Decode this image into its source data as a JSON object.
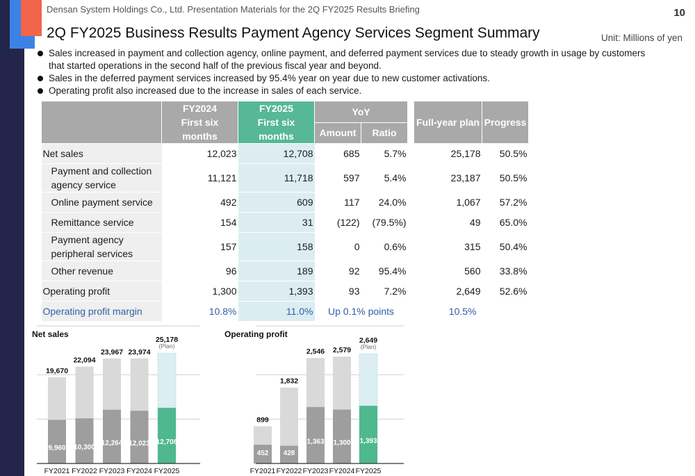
{
  "header": {
    "company": "Densan System Holdings Co., Ltd. Presentation Materials for the 2Q FY2025 Results Briefing",
    "page_number": "10",
    "title": "2Q FY2025 Business Results Payment Agency Services Segment Summary",
    "unit": "Unit: Millions of yen"
  },
  "bullets": [
    "Sales increased in payment and collection agency, online payment, and deferred payment services due to steady growth in usage by customers that started operations in the second half of the previous fiscal year and beyond.",
    "Sales in the deferred payment services increased by 95.4% year on year due to new customer activations.",
    "Operating profit also increased due to the increase in sales of each service."
  ],
  "table": {
    "headers": {
      "fy2024": "FY2024",
      "fy2024_sub": "First six months",
      "fy2025": "FY2025",
      "fy2025_sub": "First six months",
      "yoy": "YoY",
      "amount": "Amount",
      "ratio": "Ratio",
      "plan": "Full-year plan",
      "progress": "Progress"
    },
    "rows": [
      {
        "label": "Net sales",
        "fy2024": "12,023",
        "fy2025": "12,708",
        "amount": "685",
        "ratio": "5.7%",
        "plan": "25,178",
        "progress": "50.5%"
      },
      {
        "label": "Payment and collection agency service",
        "fy2024": "11,121",
        "fy2025": "11,718",
        "amount": "597",
        "ratio": "5.4%",
        "plan": "23,187",
        "progress": "50.5%"
      },
      {
        "label": "Online payment service",
        "fy2024": "492",
        "fy2025": "609",
        "amount": "117",
        "ratio": "24.0%",
        "plan": "1,067",
        "progress": "57.2%"
      },
      {
        "label": "Remittance service",
        "fy2024": "154",
        "fy2025": "31",
        "amount": "(122)",
        "ratio": "(79.5%)",
        "plan": "49",
        "progress": "65.0%"
      },
      {
        "label": "Payment agency peripheral services",
        "fy2024": "157",
        "fy2025": "158",
        "amount": "0",
        "ratio": "0.6%",
        "plan": "315",
        "progress": "50.4%"
      },
      {
        "label": "Other revenue",
        "fy2024": "96",
        "fy2025": "189",
        "amount": "92",
        "ratio": "95.4%",
        "plan": "560",
        "progress": "33.8%"
      },
      {
        "label": "Operating profit",
        "fy2024": "1,300",
        "fy2025": "1,393",
        "amount": "93",
        "ratio": "7.2%",
        "plan": "2,649",
        "progress": "52.6%"
      },
      {
        "label": "Operating profit margin",
        "fy2024": "10.8%",
        "fy2025": "11.0%",
        "yoy_text": "Up 0.1% points",
        "plan": "10.5%"
      }
    ]
  },
  "colors": {
    "full_bar": "#d9d9d9",
    "half_bar": "#9e9e9e",
    "fy2025_half": "#4fb88f",
    "plan_bar": "#dbeef1",
    "margin_text": "#2f5fa7"
  },
  "chart_data": [
    {
      "type": "bar",
      "title": "Net sales",
      "categories": [
        "FY2021",
        "FY2022",
        "FY2023",
        "FY2024",
        "FY2025"
      ],
      "series": [
        {
          "values": [
            19670,
            22094,
            23967,
            23974,
            25178
          ]
        },
        {
          "values": [
            9960,
            10300,
            12264,
            12023,
            12708
          ]
        }
      ],
      "full_labels": [
        "19,670",
        "22,094",
        "23,967",
        "23,974",
        "25,178"
      ],
      "half_labels": [
        "9,960",
        "10,300",
        "12,264",
        "12,023",
        "12,708"
      ],
      "plan_note": "(Plan)",
      "ymax": 26000
    },
    {
      "type": "bar",
      "title": "Operating profit",
      "categories": [
        "FY2021",
        "FY2022",
        "FY2023",
        "FY2024",
        "FY2025"
      ],
      "series": [
        {
          "values": [
            899,
            1832,
            2546,
            2579,
            2649
          ]
        },
        {
          "values": [
            452,
            428,
            1363,
            1300,
            1393
          ]
        }
      ],
      "full_labels": [
        "899",
        "1,832",
        "2,546",
        "2,579",
        "2,649"
      ],
      "half_labels": [
        "452",
        "428",
        "1,363",
        "1,300",
        "1,393"
      ],
      "plan_note": "(Plan)",
      "ymax": 2750
    }
  ]
}
